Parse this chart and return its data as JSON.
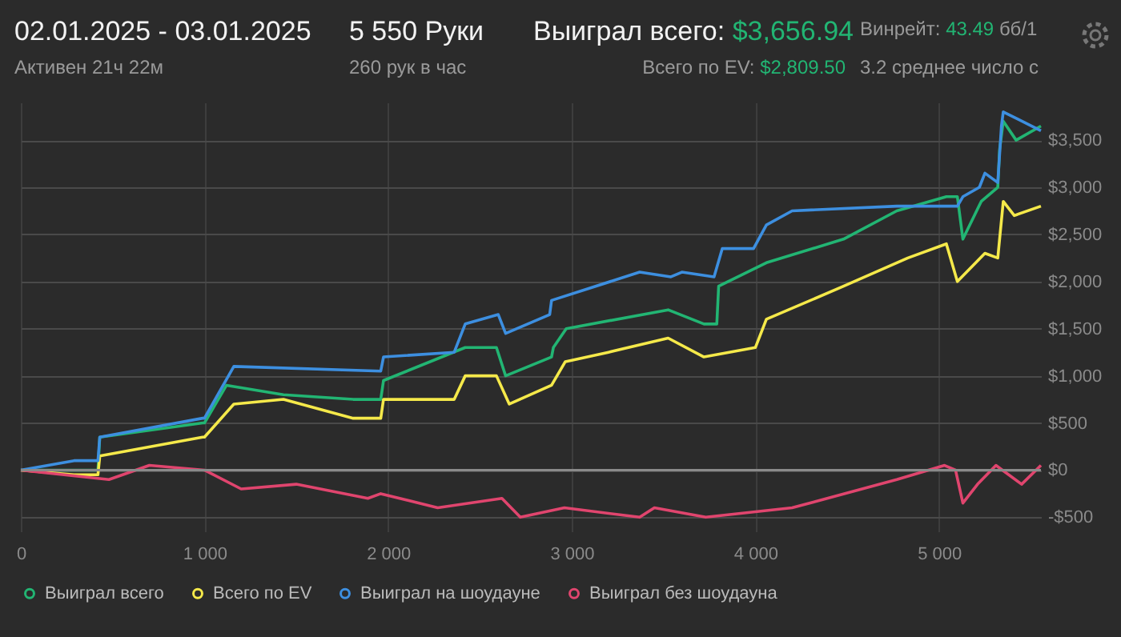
{
  "chart_data": {
    "type": "line",
    "title": "02.01.2025 - 03.01.2025",
    "subtitle": "Активен 21ч 22м",
    "annotations": [
      "5 550 Руки",
      "260 рук в час",
      "Выиграл всего:",
      "$3,656.94",
      "Всего по EV:",
      "$2,809.50",
      "Винрейт:",
      "43.49",
      "бб/1",
      "3.2 среднее число с"
    ],
    "series": [
      {
        "name": "Выиграл всего",
        "color": "#22b573",
        "x": [
          0,
          290,
          420,
          430,
          990,
          1000,
          1120,
          1430,
          1810,
          1960,
          1975,
          2420,
          2590,
          2640,
          2890,
          2900,
          2970,
          3525,
          3720,
          3790,
          3800,
          4060,
          4480,
          4770,
          5040,
          5100,
          5130,
          5230,
          5320,
          5330,
          5350,
          5420,
          5555
        ],
        "values": [
          0,
          0,
          0,
          350,
          500,
          500,
          900,
          800,
          750,
          750,
          950,
          1300,
          1300,
          1000,
          1200,
          1300,
          1500,
          1700,
          1550,
          1550,
          1950,
          2200,
          2450,
          2750,
          2900,
          2900,
          2450,
          2850,
          3000,
          3400,
          3700,
          3500,
          3650
        ]
      },
      {
        "name": "Всего по EV",
        "color": "#f5e94a",
        "x": [
          0,
          290,
          420,
          430,
          990,
          1000,
          1160,
          1430,
          1810,
          1960,
          1975,
          2360,
          2420,
          2590,
          2660,
          2890,
          2965,
          3200,
          3525,
          3720,
          4000,
          4060,
          4480,
          4830,
          5040,
          5100,
          5250,
          5320,
          5350,
          5410,
          5555
        ],
        "values": [
          0,
          -50,
          -50,
          150,
          350,
          350,
          700,
          750,
          550,
          550,
          750,
          750,
          1000,
          1000,
          700,
          900,
          1150,
          1250,
          1400,
          1200,
          1300,
          1600,
          1950,
          2250,
          2400,
          2000,
          2300,
          2250,
          2850,
          2700,
          2800
        ]
      },
      {
        "name": "Выиграл на шоудауне",
        "color": "#3d8fe0",
        "x": [
          0,
          290,
          420,
          430,
          990,
          1000,
          1160,
          1960,
          1975,
          2360,
          2420,
          2600,
          2640,
          2880,
          2890,
          3370,
          3540,
          3600,
          3775,
          3820,
          3990,
          4060,
          4200,
          4770,
          5100,
          5130,
          5220,
          5250,
          5320,
          5340,
          5350,
          5555
        ],
        "values": [
          0,
          100,
          100,
          350,
          550,
          550,
          1100,
          1050,
          1200,
          1250,
          1550,
          1650,
          1450,
          1650,
          1800,
          2100,
          2050,
          2100,
          2050,
          2350,
          2350,
          2600,
          2750,
          2800,
          2800,
          2900,
          3000,
          3150,
          3050,
          3650,
          3800,
          3600
        ]
      },
      {
        "name": "Выиграл без шоудауна",
        "color": "#e0456e",
        "x": [
          0,
          480,
          700,
          1000,
          1200,
          1500,
          1890,
          1960,
          2270,
          2620,
          2720,
          2960,
          3370,
          3450,
          3730,
          4200,
          4770,
          5030,
          5090,
          5130,
          5210,
          5310,
          5450,
          5555
        ],
        "values": [
          0,
          -100,
          50,
          0,
          -200,
          -150,
          -300,
          -250,
          -400,
          -300,
          -500,
          -400,
          -500,
          -400,
          -500,
          -400,
          -100,
          50,
          0,
          -350,
          -150,
          50,
          -150,
          50
        ]
      }
    ],
    "xlim": [
      0,
      5555
    ],
    "xticks": [
      0,
      {
        "value": 1000,
        "label": "1 000"
      },
      {
        "value": 2000,
        "label": "2 000"
      },
      {
        "value": 3000,
        "label": "3 000"
      },
      {
        "value": 4000,
        "label": "4 000"
      },
      {
        "value": 5000,
        "label": "5 000"
      }
    ],
    "ylim": [
      -650,
      3900
    ],
    "yticks": [
      {
        "value": -500,
        "label": "-$500"
      },
      {
        "value": 0,
        "label": "$0"
      },
      {
        "value": 500,
        "label": "$500"
      },
      {
        "value": 1000,
        "label": "$1,000"
      },
      {
        "value": 1500,
        "label": "$1,500"
      },
      {
        "value": 2000,
        "label": "$2,000"
      },
      {
        "value": 2500,
        "label": "$2,500"
      },
      {
        "value": 3000,
        "label": "$3,000"
      },
      {
        "value": 3500,
        "label": "$3,500"
      }
    ],
    "ref_lines": [
      {
        "axis": "y",
        "value": 0,
        "color": "#8a8a8a"
      }
    ],
    "grid": true,
    "legend": "bottom",
    "marker": "none",
    "line_style": "solid"
  }
}
